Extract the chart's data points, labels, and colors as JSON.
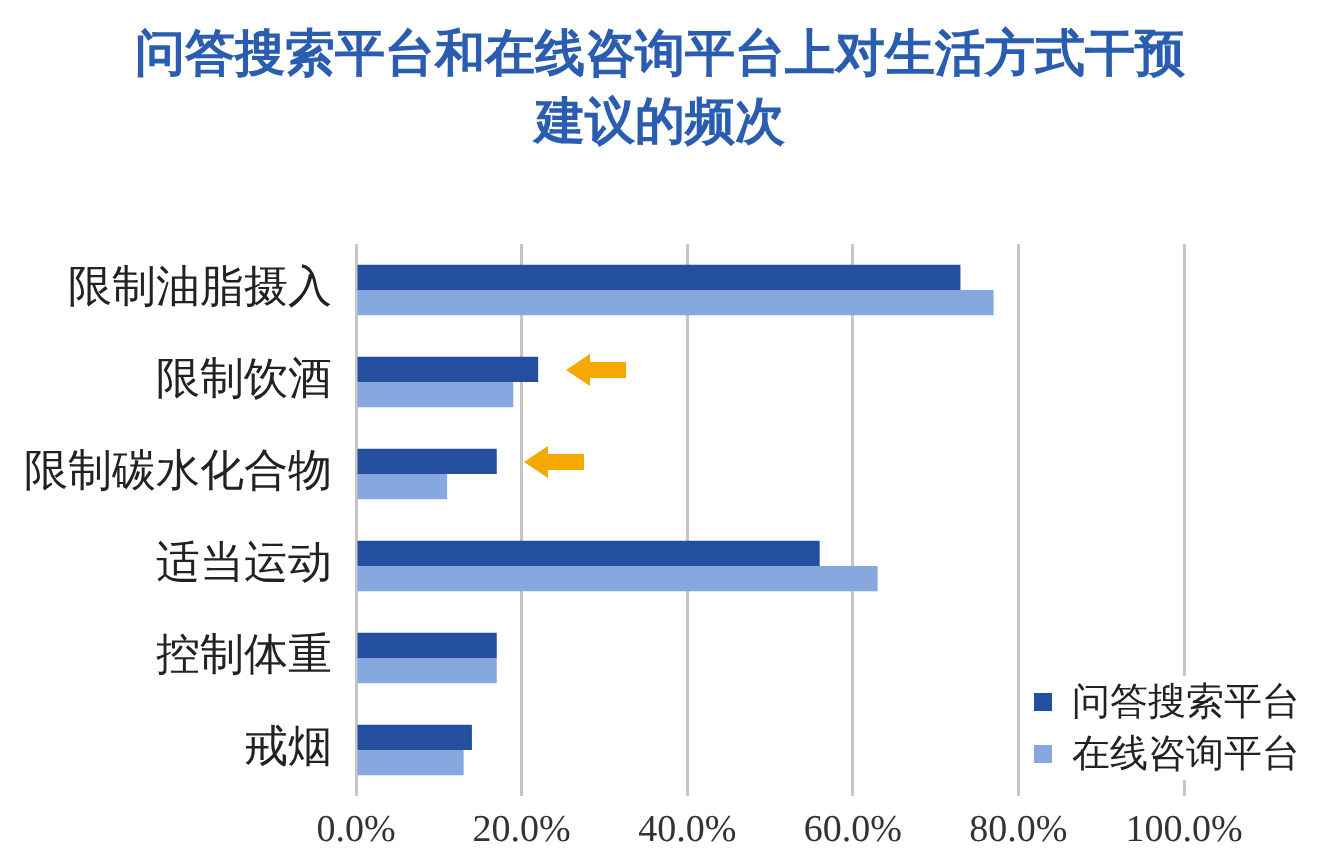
{
  "chart_data": {
    "type": "bar",
    "orientation": "horizontal",
    "title": "问答搜索平台和在线咨询平台上对生活方式干预建议的频次",
    "categories": [
      "限制油脂摄入",
      "限制饮酒",
      "限制碳水化合物",
      "适当运动",
      "控制体重",
      "戒烟"
    ],
    "series": [
      {
        "name": "问答搜索平台",
        "color": "#234f9e",
        "values": [
          73,
          22,
          17,
          56,
          17,
          14
        ]
      },
      {
        "name": "在线咨询平台",
        "color": "#86a8df",
        "values": [
          77,
          19,
          11,
          63,
          17,
          13
        ]
      }
    ],
    "xlim": [
      0,
      100
    ],
    "xticks": [
      {
        "value": 0,
        "label": "0.0%"
      },
      {
        "value": 20,
        "label": "20.0%"
      },
      {
        "value": 40,
        "label": "40.0%"
      },
      {
        "value": 60,
        "label": "60.0%"
      },
      {
        "value": 80,
        "label": "80.0%"
      },
      {
        "value": 100,
        "label": "100.0%"
      }
    ],
    "grid": "x",
    "legend": "bottom right"
  }
}
